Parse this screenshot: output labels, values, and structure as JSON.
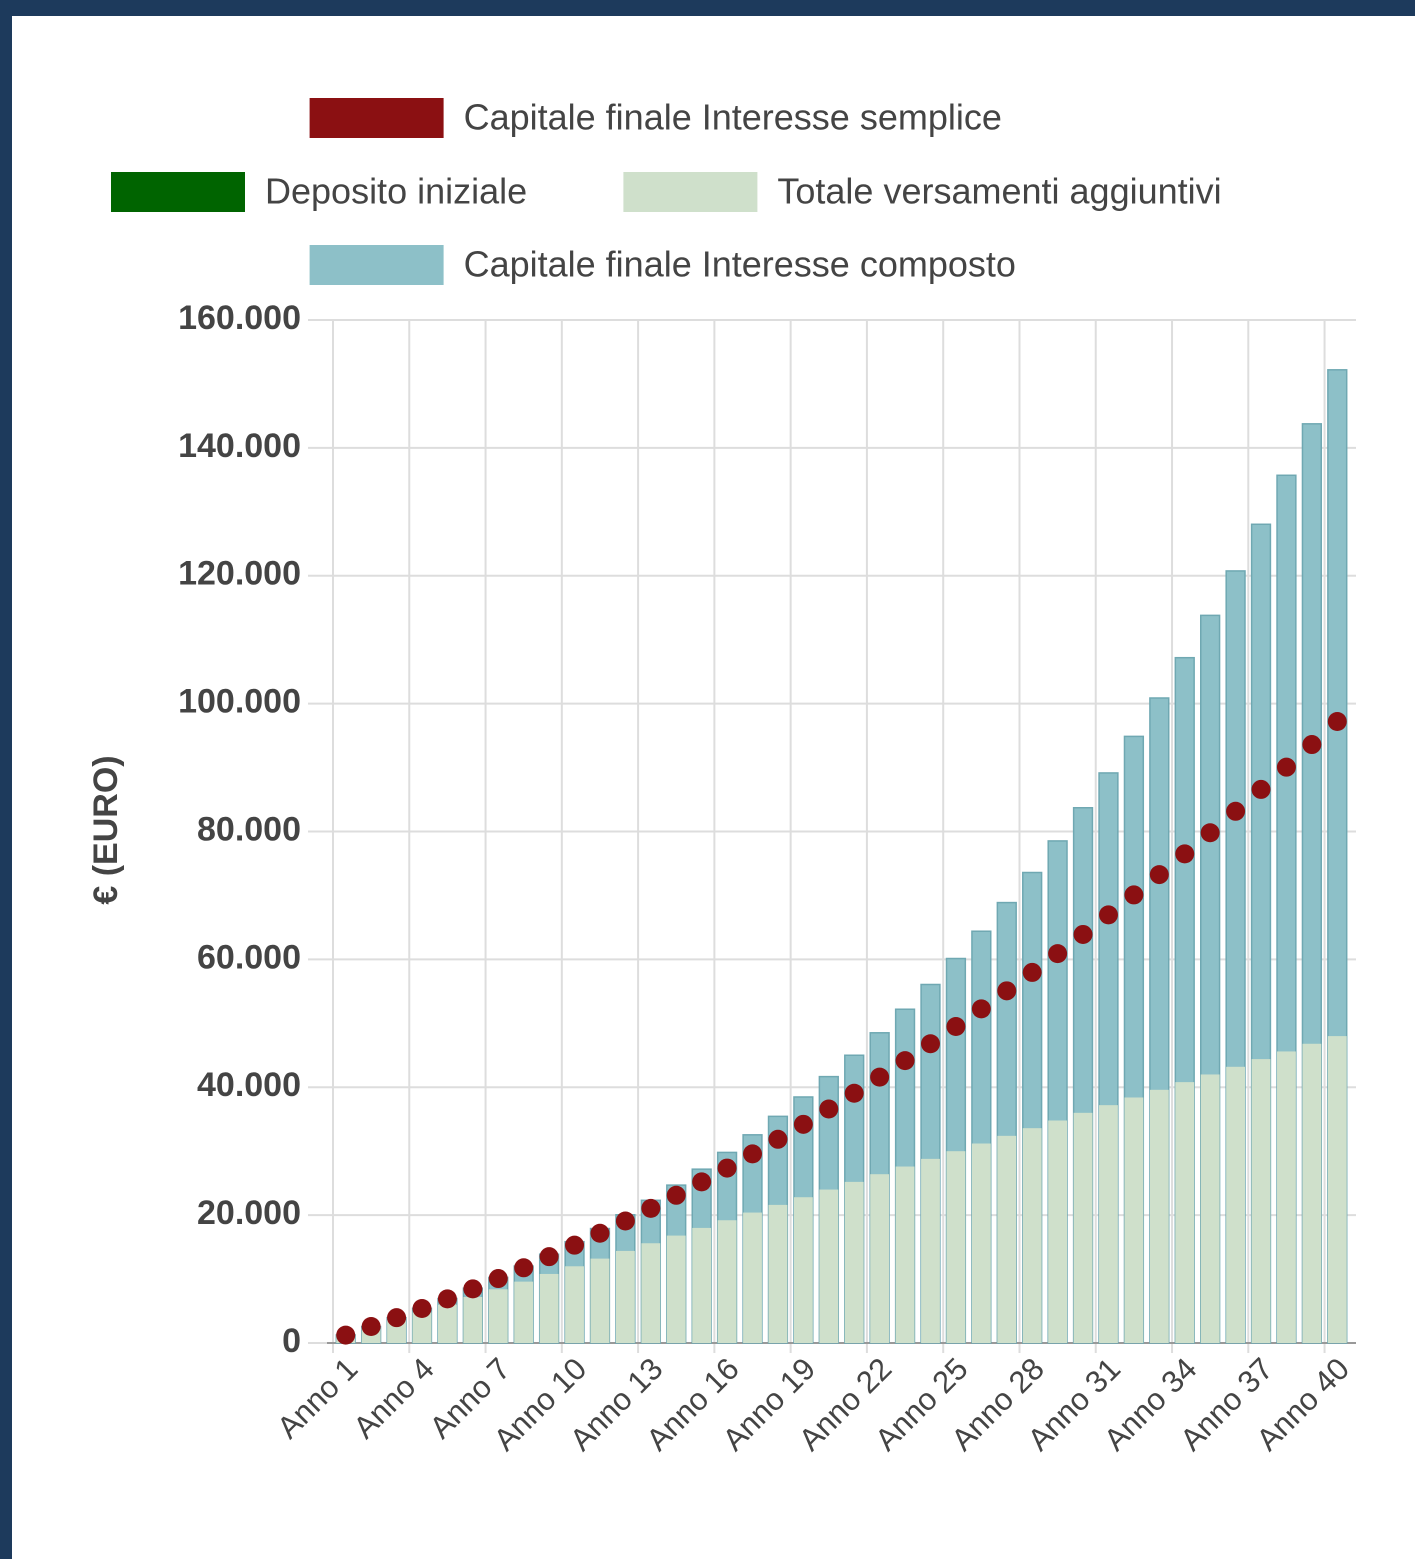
{
  "chart_data": {
    "type": "bar",
    "stacked": false,
    "y_label": "€ (EURO)",
    "categories": [
      "Anno 1",
      null,
      null,
      "Anno 4",
      null,
      null,
      "Anno 7",
      null,
      null,
      "Anno 10",
      null,
      null,
      "Anno 13",
      null,
      null,
      "Anno 16",
      null,
      null,
      "Anno 19",
      null,
      null,
      "Anno 22",
      null,
      null,
      "Anno 25",
      null,
      null,
      "Anno 28",
      null,
      null,
      "Anno 31",
      null,
      null,
      "Anno 34",
      null,
      null,
      "Anno 37",
      null,
      null,
      "Anno 40"
    ],
    "series": [
      {
        "name": "Capitale finale Interesse composto",
        "type": "bar",
        "color": "#8dc0c8",
        "values": [
          1260,
          2583,
          3972,
          5431,
          6962,
          8570,
          10259,
          12032,
          13893,
          15848,
          17901,
          20056,
          22318,
          24694,
          27189,
          29808,
          32559,
          35447,
          38479,
          41663,
          45006,
          48517,
          52202,
          56073,
          60136,
          64403,
          68883,
          73587,
          78527,
          83713,
          89159,
          94877,
          100880,
          107184,
          113804,
          120754,
          128051,
          135714,
          143760,
          152208
        ]
      },
      {
        "name": "Deposito iniziale",
        "type": "bar",
        "color": "#006400",
        "values": [
          0,
          0,
          0,
          0,
          0,
          0,
          0,
          0,
          0,
          0,
          0,
          0,
          0,
          0,
          0,
          0,
          0,
          0,
          0,
          0,
          0,
          0,
          0,
          0,
          0,
          0,
          0,
          0,
          0,
          0,
          0,
          0,
          0,
          0,
          0,
          0,
          0,
          0,
          0,
          0
        ]
      },
      {
        "name": "Totale versamenti aggiuntivi",
        "type": "bar",
        "color": "#cfe0cb",
        "values": [
          1200,
          2400,
          3600,
          4800,
          6000,
          7200,
          8400,
          9600,
          10800,
          12000,
          13200,
          14400,
          15600,
          16800,
          18000,
          19200,
          20400,
          21600,
          22800,
          24000,
          25200,
          26400,
          27600,
          28800,
          30000,
          31200,
          32400,
          33600,
          34800,
          36000,
          37200,
          38400,
          39600,
          40800,
          42000,
          43200,
          44400,
          45600,
          46800,
          48000
        ]
      },
      {
        "name": "Capitale finale Interesse semplice",
        "type": "scatter",
        "color": "#8b1012",
        "values": [
          1230,
          2580,
          3960,
          5400,
          6900,
          8460,
          10080,
          11760,
          13500,
          15300,
          17160,
          19080,
          21060,
          23100,
          25200,
          27360,
          29580,
          31860,
          34200,
          36600,
          39060,
          41580,
          44160,
          46800,
          49500,
          52260,
          55080,
          57960,
          60900,
          63900,
          66960,
          70080,
          73260,
          76500,
          79800,
          83160,
          86580,
          90060,
          93600,
          97200
        ]
      }
    ],
    "ylim": [
      0,
      160000
    ],
    "yticks": [
      0,
      {
        "value": 20000,
        "label": "20.000"
      },
      {
        "value": 40000,
        "label": "40.000"
      },
      {
        "value": 60000,
        "label": "60.000"
      },
      {
        "value": 80000,
        "label": "80.000"
      },
      {
        "value": 100000,
        "label": "100.000"
      },
      {
        "value": 120000,
        "label": "120.000"
      },
      {
        "value": 140000,
        "label": "140.000"
      },
      {
        "value": 160000,
        "label": "160.000"
      }
    ],
    "grid": true
  }
}
